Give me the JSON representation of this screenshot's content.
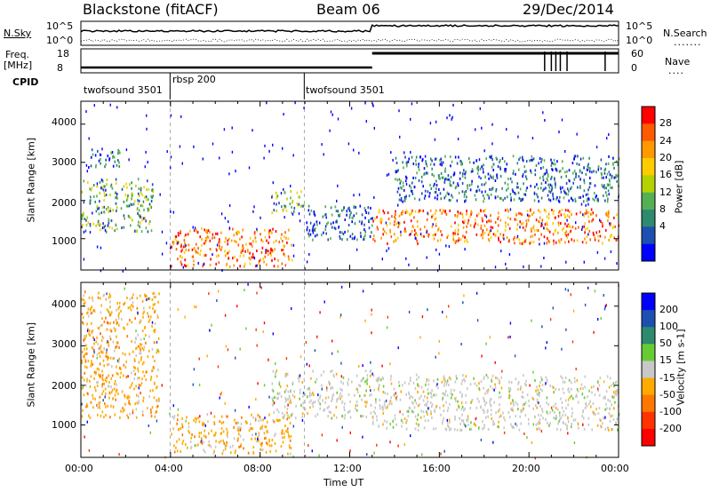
{
  "header": {
    "station": "Blackstone (fitACF)",
    "beam": "Beam 06",
    "date": "29/Dec/2014"
  },
  "noise_panel": {
    "left_label": "N.Sky",
    "right_label": "N.Search",
    "ytick_top": "10^5",
    "ytick_bottom": "10^0"
  },
  "freq_panel": {
    "label_line1": "Freq.",
    "label_line2": "[MHz]",
    "left_ticks": [
      "18",
      "8"
    ],
    "right_ticks": [
      "60",
      "0"
    ],
    "right_label": "Nave"
  },
  "cpid": {
    "label": "CPID",
    "segments": [
      "twofsound 3501",
      "rbsp 200",
      "twofsound 3501"
    ]
  },
  "chart_data": [
    {
      "type": "heatmap",
      "name": "power",
      "ylabel": "Slant Range [km]",
      "ylim": [
        180,
        4600
      ],
      "yticks": [
        "1000",
        "2000",
        "3000",
        "4000"
      ],
      "xlim": [
        "00:00",
        "24:00"
      ],
      "colorbar": {
        "label": "Power [dB]",
        "ticks": [
          "28",
          "24",
          "20",
          "16",
          "12",
          "8",
          "4"
        ],
        "colors": [
          "#ff0000",
          "#ff5a00",
          "#ff9900",
          "#ffcc00",
          "#b4d200",
          "#55b055",
          "#2d8a6e",
          "#1d4fb0",
          "#0000ff"
        ]
      },
      "echo_regions": [
        {
          "t_start": 0.0,
          "t_end": 3.2,
          "r_start": 1200,
          "r_end": 2600,
          "level": "medium"
        },
        {
          "t_start": 0.3,
          "t_end": 1.8,
          "r_start": 2900,
          "r_end": 3400,
          "level": "low"
        },
        {
          "t_start": 4.0,
          "t_end": 9.4,
          "r_start": 300,
          "r_end": 1300,
          "level": "high"
        },
        {
          "t_start": 8.5,
          "t_end": 10.0,
          "r_start": 1700,
          "r_end": 2300,
          "level": "medium"
        },
        {
          "t_start": 10.0,
          "t_end": 13.0,
          "r_start": 1000,
          "r_end": 1900,
          "level": "low"
        },
        {
          "t_start": 13.0,
          "t_end": 24.0,
          "r_start": 900,
          "r_end": 1800,
          "level": "high"
        },
        {
          "t_start": 14.0,
          "t_end": 24.0,
          "r_start": 2000,
          "r_end": 3200,
          "level": "low"
        }
      ]
    },
    {
      "type": "heatmap",
      "name": "velocity",
      "ylabel": "Slant Range [km]",
      "ylim": [
        180,
        4600
      ],
      "yticks": [
        "1000",
        "2000",
        "3000",
        "4000"
      ],
      "xlim": [
        "00:00",
        "24:00"
      ],
      "xticks": [
        "00:00",
        "04:00",
        "08:00",
        "12:00",
        "16:00",
        "20:00",
        "00:00"
      ],
      "xlabel": "Time UT",
      "colorbar": {
        "label": "Velocity [m s-1]",
        "ticks": [
          "200",
          "100",
          "50",
          "15",
          "-15",
          "-50",
          "-100",
          "-200"
        ],
        "colors": [
          "#0000ff",
          "#1d4fb0",
          "#2d8a6e",
          "#66cc33",
          "#c8c8c8",
          "#ffaa00",
          "#ff7700",
          "#ff3300",
          "#ff0000"
        ]
      },
      "echo_regions": [
        {
          "t_start": 0.0,
          "t_end": 3.5,
          "r_start": 1200,
          "r_end": 4400,
          "velocity": "negative"
        },
        {
          "t_start": 4.0,
          "t_end": 9.4,
          "r_start": 300,
          "r_end": 1300,
          "velocity": "negative"
        },
        {
          "t_start": 8.5,
          "t_end": 13.0,
          "r_start": 1200,
          "r_end": 2400,
          "velocity": "low"
        },
        {
          "t_start": 13.0,
          "t_end": 24.0,
          "r_start": 900,
          "r_end": 2300,
          "velocity": "low"
        }
      ]
    }
  ]
}
